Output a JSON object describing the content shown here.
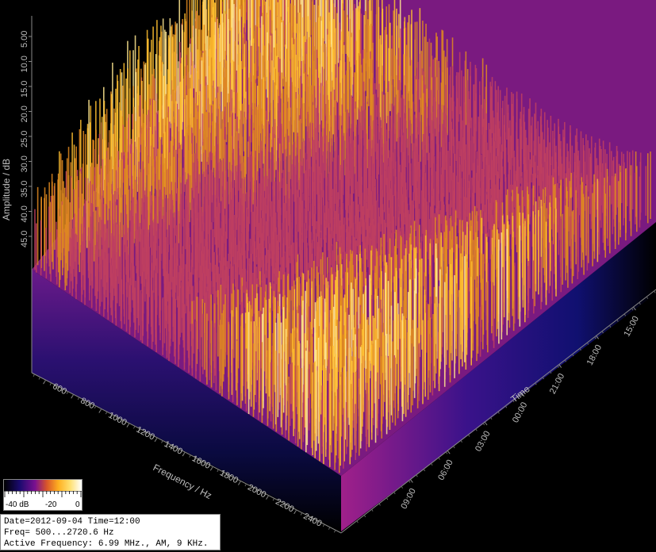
{
  "chart_data": {
    "type": "waterfall-3d",
    "zlabel": "Amplitude / dB",
    "xlabel": "Frequency / Hz",
    "ylabel": "Time",
    "z_ticks": [
      "5.00",
      "10.0",
      "15.0",
      "20.0",
      "25.0",
      "30.0",
      "35.0",
      "40.0",
      "45.0"
    ],
    "x_ticks": [
      "600",
      "800",
      "1000",
      "1200",
      "1400",
      "1600",
      "1800",
      "2000",
      "2200",
      "2400"
    ],
    "y_ticks": [
      "09:00",
      "06:00",
      "03:00",
      "00:00",
      "21:00",
      "18:00",
      "15:00"
    ],
    "z_range_db": [
      -50,
      0
    ],
    "x_range_hz": [
      500,
      2720.6
    ],
    "colormap": [
      "#000000",
      "#1a0a6e",
      "#5a0a9a",
      "#a0208a",
      "#d8552a",
      "#f0a020",
      "#ffd44a",
      "#ffffff"
    ]
  },
  "colorbar": {
    "labels": [
      "-40 dB",
      "-20",
      "0"
    ]
  },
  "info": {
    "line1": "Date=2012-09-04 Time=12:00",
    "line2": "Freq= 500...2720.6 Hz",
    "line3": "Active Frequency: 6.99 MHz., AM, 9 KHz."
  }
}
